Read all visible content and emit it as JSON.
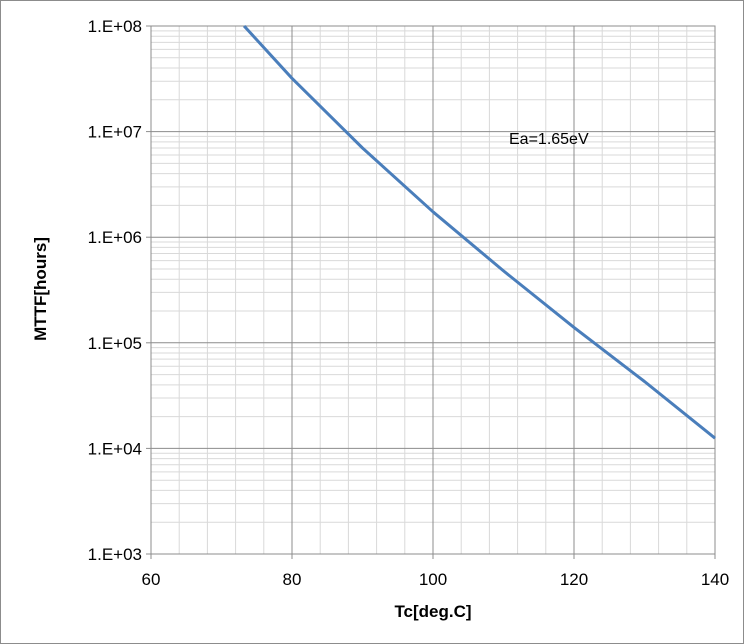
{
  "chart_data": {
    "type": "line",
    "title": "",
    "xlabel": "Tc[deg.C]",
    "ylabel": "MTTF[hours]",
    "xlim": [
      60,
      140
    ],
    "ylim": [
      1000,
      100000000
    ],
    "y_scale": "log",
    "x_ticks": [
      "60",
      "80",
      "100",
      "120",
      "140"
    ],
    "y_ticks": [
      "1.E+03",
      "1.E+04",
      "1.E+05",
      "1.E+06",
      "1.E+07",
      "1.E+08"
    ],
    "grid": true,
    "annotations": [
      "Ea=1.65eV"
    ],
    "series": [
      {
        "color": "#4a7ebb",
        "x": [
          73.2,
          80,
          90,
          100,
          110,
          120,
          130,
          140
        ],
        "y": [
          100000000,
          32000000,
          7000000,
          1740000,
          480000,
          140000,
          43000,
          12500
        ]
      }
    ]
  }
}
